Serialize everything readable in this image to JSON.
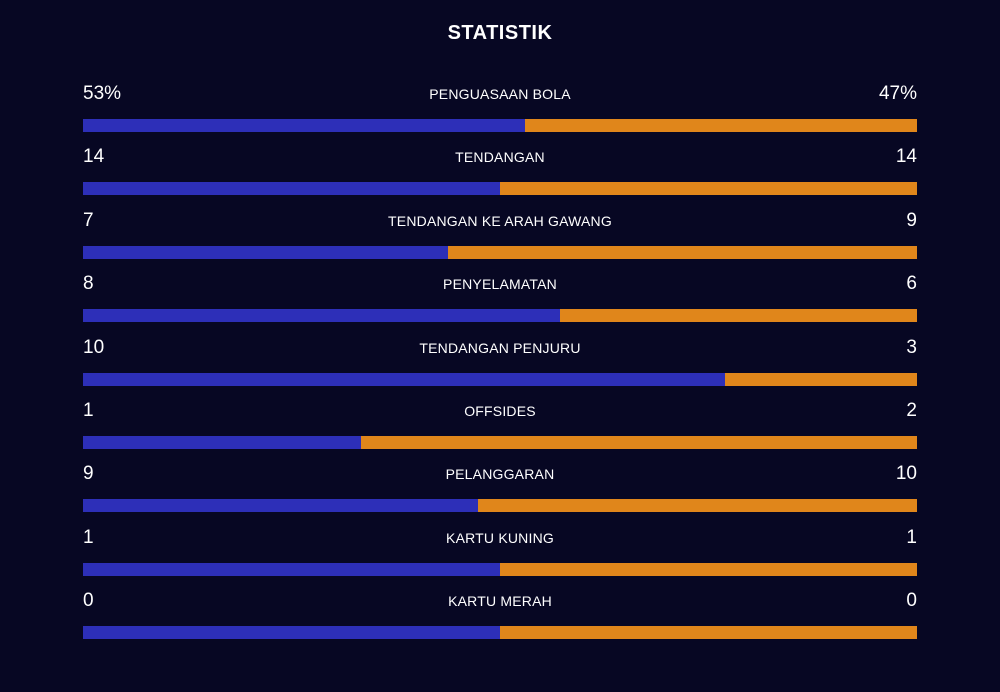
{
  "title": "STATISTIK",
  "colors": {
    "background": "#070723",
    "home": "#2d2fb8",
    "away": "#e0861b"
  },
  "stats": [
    {
      "label": "PENGUASAAN BOLA",
      "home": "53%",
      "away": "47%",
      "home_share": 0.53
    },
    {
      "label": "TENDANGAN",
      "home": "14",
      "away": "14",
      "home_share": 0.5
    },
    {
      "label": "TENDANGAN KE ARAH GAWANG",
      "home": "7",
      "away": "9",
      "home_share": 0.4375
    },
    {
      "label": "PENYELAMATAN",
      "home": "8",
      "away": "6",
      "home_share": 0.5714
    },
    {
      "label": "TENDANGAN PENJURU",
      "home": "10",
      "away": "3",
      "home_share": 0.7692
    },
    {
      "label": "OFFSIDES",
      "home": "1",
      "away": "2",
      "home_share": 0.3333
    },
    {
      "label": "PELANGGARAN",
      "home": "9",
      "away": "10",
      "home_share": 0.4737
    },
    {
      "label": "KARTU KUNING",
      "home": "1",
      "away": "1",
      "home_share": 0.5
    },
    {
      "label": "KARTU MERAH",
      "home": "0",
      "away": "0",
      "home_share": 0.5
    }
  ]
}
